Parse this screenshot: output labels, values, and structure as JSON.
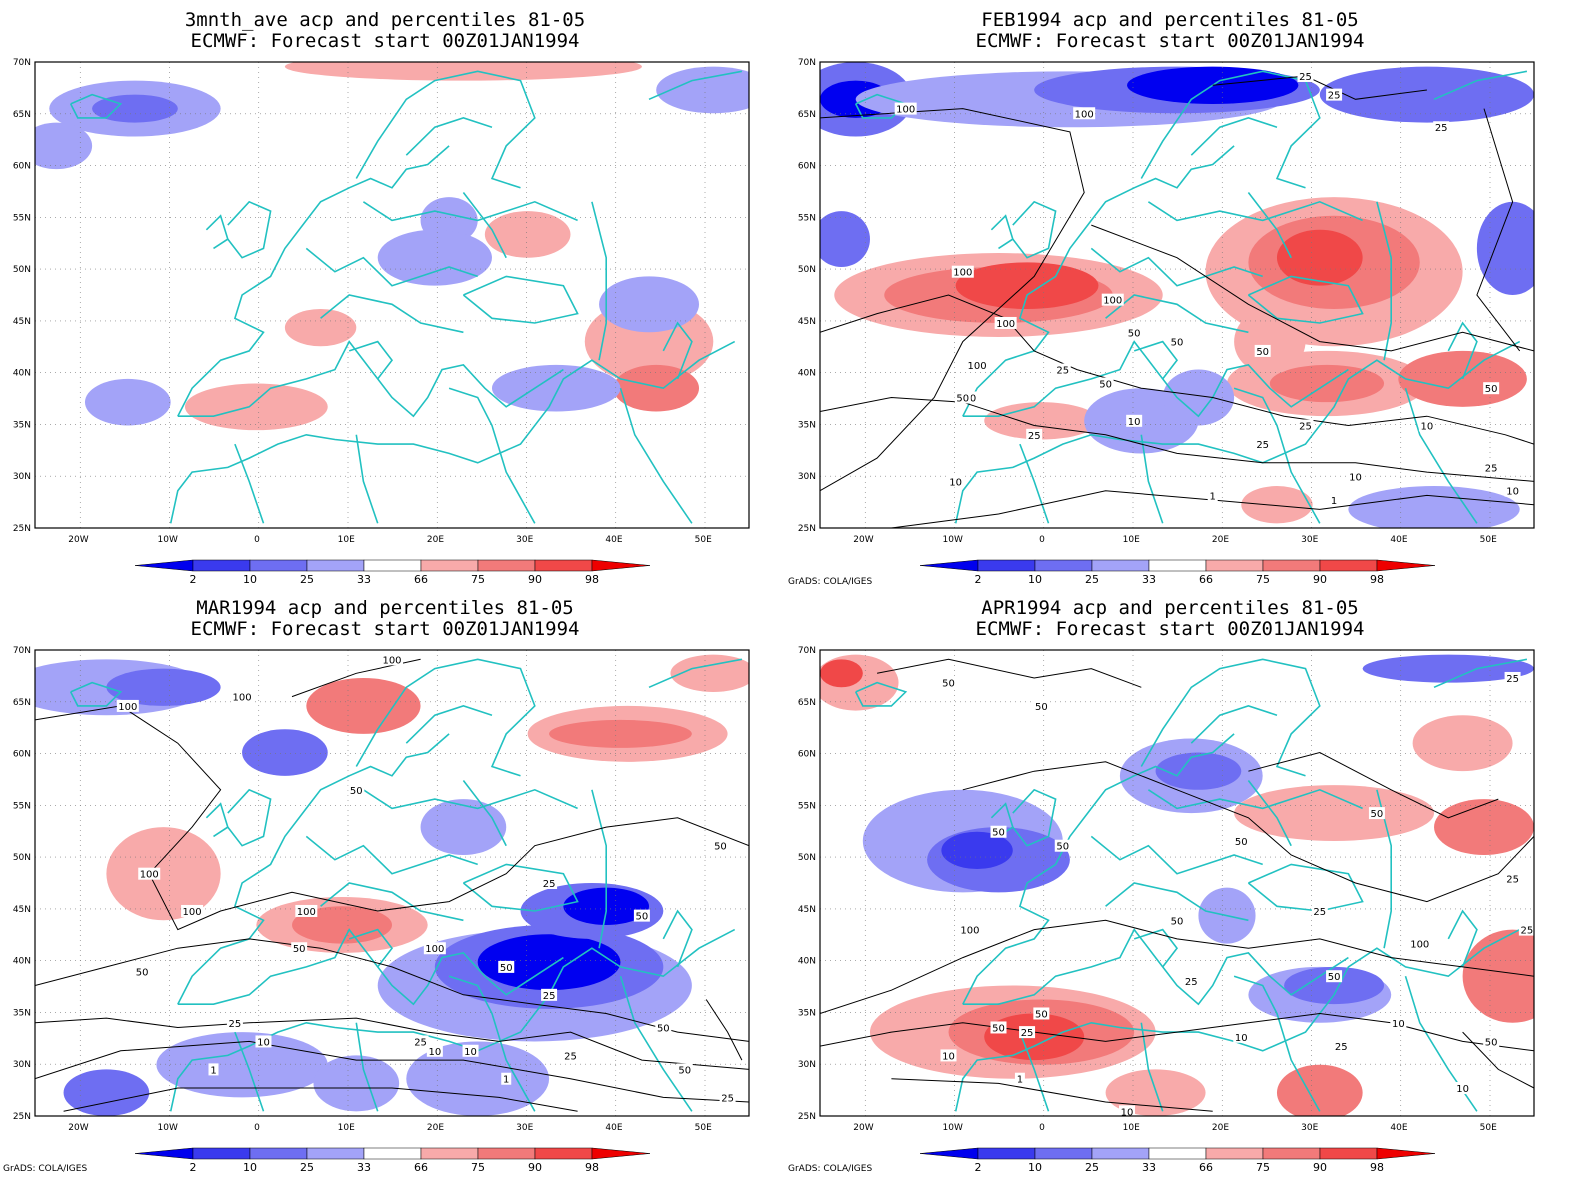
{
  "colors": {
    "coast": "#22c1c1",
    "blue_light": "#a3a3f8",
    "blue_mid": "#6e6ef2",
    "blue_dark": "#3a3aee",
    "blue_deep": "#0000f0",
    "red_light": "#f8aaaa",
    "red_mid": "#f27a7a",
    "red_dark": "#f04848",
    "red_deep": "#f01010",
    "contour": "#000000"
  },
  "axes": {
    "lat_labels": [
      "70N",
      "65N",
      "60N",
      "55N",
      "50N",
      "45N",
      "40N",
      "35N",
      "30N",
      "25N"
    ],
    "lon_labels": [
      "20W",
      "10W",
      "0",
      "10E",
      "20E",
      "30E",
      "40E",
      "50E"
    ]
  },
  "colorbar": {
    "labels": [
      "2",
      "10",
      "25",
      "33",
      "66",
      "75",
      "90",
      "98"
    ]
  },
  "credit": "GrADS: COLA/IGES",
  "panels": [
    {
      "title_line1": "3mnth_ave acp and percentiles 81-05",
      "title_line2": "ECMWF: Forecast start 00Z01JAN1994",
      "contour_labels": []
    },
    {
      "title_line1": "FEB1994 acp and percentiles 81-05",
      "title_line2": "ECMWF: Forecast start 00Z01JAN1994",
      "contour_labels": [
        "100",
        "100",
        "25",
        "25",
        "25",
        "100",
        "100",
        "100",
        "50",
        "50",
        "25",
        "100",
        "50",
        "50",
        "10",
        "25",
        "10",
        "50",
        "25",
        "25",
        "50",
        "1",
        "1",
        "10",
        "10",
        "25",
        "50",
        "10"
      ]
    },
    {
      "title_line1": "MAR1994 acp and percentiles 81-05",
      "title_line2": "ECMWF: Forecast start 00Z01JAN1994",
      "contour_labels": [
        "100",
        "100",
        "100",
        "50",
        "100",
        "100",
        "100",
        "50",
        "25",
        "50",
        "50",
        "100",
        "50",
        "25",
        "25",
        "25",
        "10",
        "10",
        "50",
        "10",
        "1",
        "1",
        "25",
        "50",
        "50",
        "25"
      ]
    },
    {
      "title_line1": "APR1994 acp and percentiles 81-05",
      "title_line2": "ECMWF: Forecast start 00Z01JAN1994",
      "contour_labels": [
        "50",
        "50",
        "25",
        "50",
        "50",
        "50",
        "50",
        "25",
        "25",
        "100",
        "100",
        "50",
        "50",
        "50",
        "25",
        "10",
        "25",
        "10",
        "10",
        "50",
        "50",
        "25",
        "10",
        "1",
        "10",
        "25"
      ]
    }
  ]
}
